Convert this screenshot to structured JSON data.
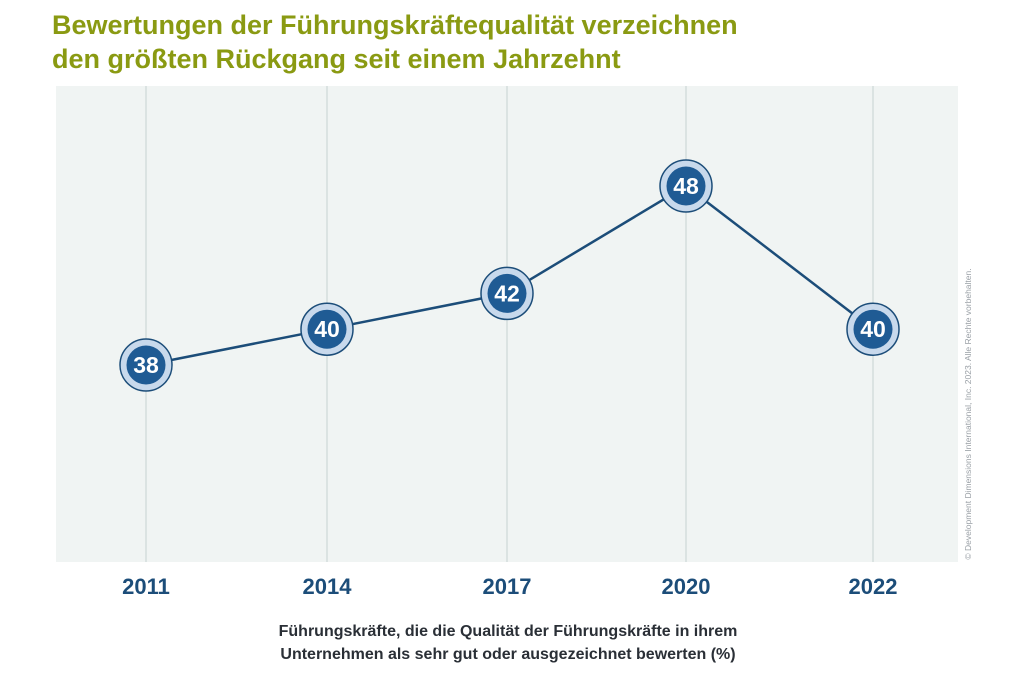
{
  "colors": {
    "title": "#8a9a12",
    "plot_bg": "#f0f4f3",
    "gridline": "#cdd8d8",
    "line": "#1c4d79",
    "marker_inner": "#1f5b94",
    "marker_ring": "#c8d9ec",
    "tick_label": "#1c4d79"
  },
  "copyright": "© Development Dimensions International, Inc. 2023. Alle Rechte vorbehalten.",
  "chart_data": {
    "type": "line",
    "title": [
      "Bewertungen der Führungskräftequalität verzeichnen",
      "den größten Rückgang seit einem Jahrzehnt"
    ],
    "caption": [
      "Führungskräfte, die die Qualität der Führungskräfte in ihrem",
      "Unternehmen als sehr gut oder ausgezeichnet bewerten (%)"
    ],
    "categories": [
      "2011",
      "2014",
      "2017",
      "2020",
      "2022"
    ],
    "values": [
      38,
      40,
      42,
      48,
      40
    ],
    "data_labels": [
      "38",
      "40",
      "42",
      "48",
      "40"
    ],
    "ylim": [
      25,
      55
    ],
    "grid": "vertical",
    "legend": "none"
  }
}
